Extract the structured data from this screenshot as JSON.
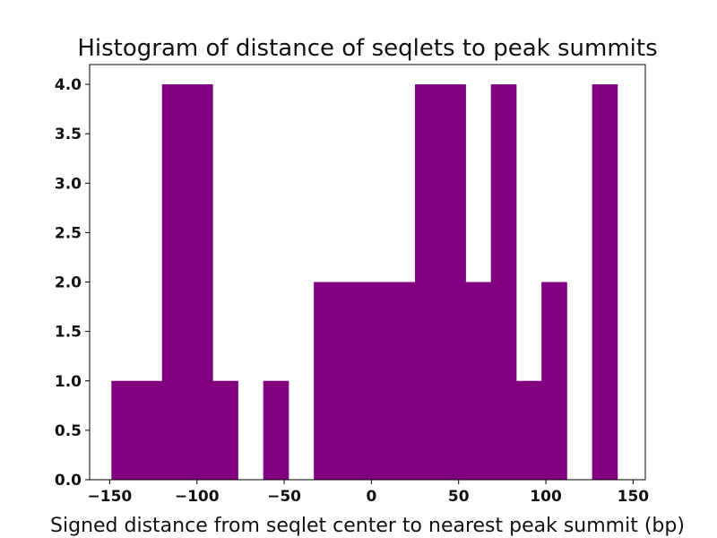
{
  "chart_data": {
    "type": "bar",
    "title": "Histogram of distance of seqlets to peak summits",
    "xlabel": "Signed distance from seqlet center to nearest peak summit (bp)",
    "ylabel": "",
    "bar_color": "#800080",
    "xlim": [
      -161.5,
      157
    ],
    "ylim": [
      0,
      4.2
    ],
    "xticks": [
      -150,
      -100,
      -50,
      0,
      50,
      100,
      150
    ],
    "xtick_labels": [
      "−150",
      "−100",
      "−50",
      "0",
      "50",
      "100",
      "150"
    ],
    "yticks": [
      0.0,
      0.5,
      1.0,
      1.5,
      2.0,
      2.5,
      3.0,
      3.5,
      4.0
    ],
    "ytick_labels": [
      "0.0",
      "0.5",
      "1.0",
      "1.5",
      "2.0",
      "2.5",
      "3.0",
      "3.5",
      "4.0"
    ],
    "grid": false,
    "bins": [
      {
        "x0": -149.0,
        "x1": -134.5,
        "count": 1
      },
      {
        "x0": -134.5,
        "x1": -120.0,
        "count": 1
      },
      {
        "x0": -120.0,
        "x1": -105.5,
        "count": 4
      },
      {
        "x0": -105.5,
        "x1": -91.0,
        "count": 4
      },
      {
        "x0": -91.0,
        "x1": -76.5,
        "count": 1
      },
      {
        "x0": -76.5,
        "x1": -62.0,
        "count": 0
      },
      {
        "x0": -62.0,
        "x1": -47.5,
        "count": 1
      },
      {
        "x0": -47.5,
        "x1": -33.0,
        "count": 0
      },
      {
        "x0": -33.0,
        "x1": -18.5,
        "count": 2
      },
      {
        "x0": -18.5,
        "x1": -4.0,
        "count": 2
      },
      {
        "x0": -4.0,
        "x1": 10.5,
        "count": 2
      },
      {
        "x0": 10.5,
        "x1": 25.0,
        "count": 2
      },
      {
        "x0": 25.0,
        "x1": 39.5,
        "count": 4
      },
      {
        "x0": 39.5,
        "x1": 54.0,
        "count": 4
      },
      {
        "x0": 54.0,
        "x1": 68.5,
        "count": 2
      },
      {
        "x0": 68.5,
        "x1": 83.0,
        "count": 4
      },
      {
        "x0": 83.0,
        "x1": 97.5,
        "count": 1
      },
      {
        "x0": 97.5,
        "x1": 112.0,
        "count": 2
      },
      {
        "x0": 112.0,
        "x1": 126.5,
        "count": 0
      },
      {
        "x0": 126.5,
        "x1": 141.0,
        "count": 4
      }
    ]
  }
}
